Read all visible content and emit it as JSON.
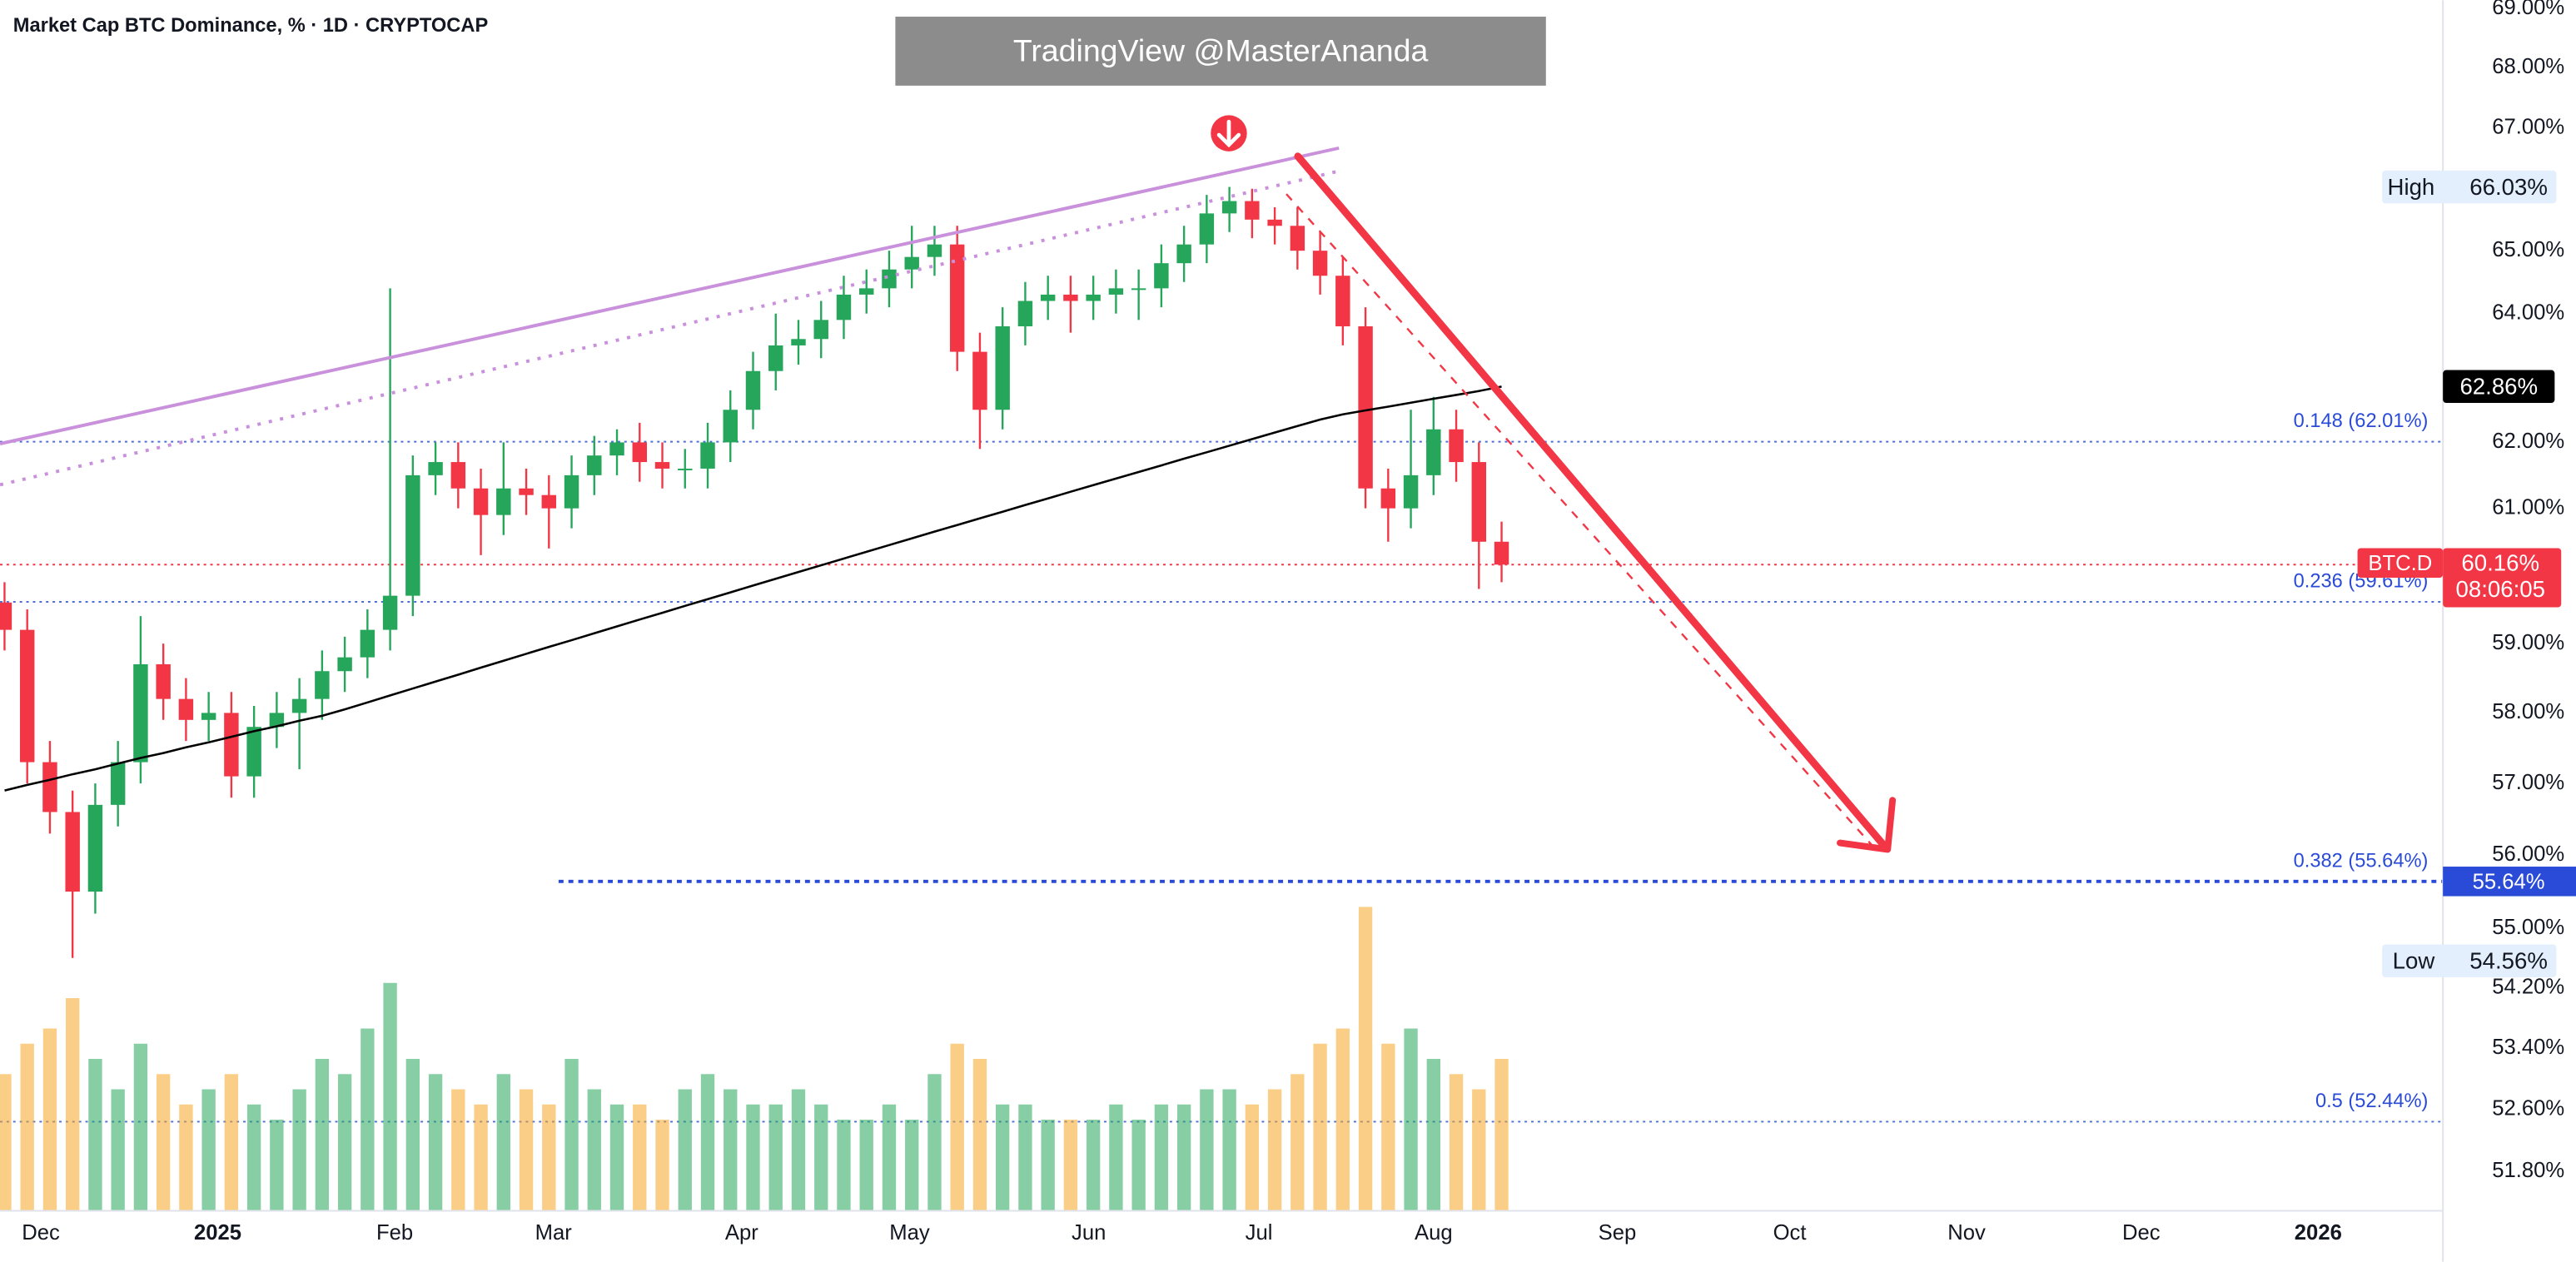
{
  "chart_data": {
    "type": "candlestick",
    "title": "Market Cap BTC Dominance, % · 1D · CRYPTOCAP",
    "watermark": "TradingView @MasterAnanda",
    "ylog": true,
    "grid": false,
    "ylim": [
      51.3,
      69.14
    ],
    "xlim": [
      -0.2,
      107.5
    ],
    "yticks": [
      {
        "value": 69,
        "label": "69.00%"
      },
      {
        "value": 68,
        "label": "68.00%"
      },
      {
        "value": 67,
        "label": "67.00%"
      },
      {
        "value": 65,
        "label": "65.00%"
      },
      {
        "value": 64,
        "label": "64.00%"
      },
      {
        "value": 62,
        "label": "62.00%"
      },
      {
        "value": 61,
        "label": "61.00%"
      },
      {
        "value": 59,
        "label": "59.00%"
      },
      {
        "value": 58,
        "label": "58.00%"
      },
      {
        "value": 57,
        "label": "57.00%"
      },
      {
        "value": 56,
        "label": "56.00%"
      },
      {
        "value": 55,
        "label": "55.00%"
      },
      {
        "value": 54.2,
        "label": "54.20%"
      },
      {
        "value": 53.4,
        "label": "53.40%"
      },
      {
        "value": 52.6,
        "label": "52.60%"
      },
      {
        "value": 51.8,
        "label": "51.80%"
      }
    ],
    "xticks": [
      {
        "value": 1.6,
        "label": "Dec"
      },
      {
        "value": 9.4,
        "label": "2025"
      },
      {
        "value": 17.2,
        "label": "Feb"
      },
      {
        "value": 24.2,
        "label": "Mar"
      },
      {
        "value": 32.5,
        "label": "Apr"
      },
      {
        "value": 39.9,
        "label": "May"
      },
      {
        "value": 47.8,
        "label": "Jun"
      },
      {
        "value": 55.3,
        "label": "Jul"
      },
      {
        "value": 63,
        "label": "Aug"
      },
      {
        "value": 71.1,
        "label": "Sep"
      },
      {
        "value": 78.7,
        "label": "Oct"
      },
      {
        "value": 86.5,
        "label": "Nov"
      },
      {
        "value": 94.2,
        "label": "Dec"
      },
      {
        "value": 102,
        "label": "2026"
      }
    ],
    "up_color": "#26a65b",
    "down_color": "#f23645",
    "open": [
      59.6,
      59.2,
      57.3,
      56.6,
      55.5,
      56.7,
      57.3,
      58.7,
      58.2,
      57.9,
      58.0,
      57.1,
      57.8,
      58.0,
      58.2,
      58.6,
      58.8,
      59.2,
      59.7,
      61.5,
      61.7,
      61.3,
      60.9,
      61.3,
      61.2,
      61.0,
      61.5,
      61.8,
      62.0,
      61.7,
      61.6,
      61.6,
      62.0,
      62.5,
      63.1,
      63.5,
      63.6,
      63.9,
      64.3,
      64.4,
      64.7,
      64.9,
      65.1,
      63.4,
      62.5,
      63.8,
      64.2,
      64.3,
      64.2,
      64.3,
      64.4,
      64.4,
      64.8,
      65.1,
      65.6,
      65.8,
      65.5,
      65.4,
      65.0,
      64.6,
      63.8,
      61.3,
      61.0,
      61.5,
      62.2,
      61.7,
      60.5
    ],
    "high": [
      59.9,
      59.5,
      57.6,
      56.9,
      57.0,
      57.6,
      59.4,
      59.0,
      58.5,
      58.3,
      58.3,
      58.1,
      58.3,
      58.5,
      58.9,
      59.1,
      59.5,
      64.4,
      61.8,
      62.0,
      62.0,
      61.6,
      62.0,
      61.6,
      61.5,
      61.8,
      62.1,
      62.2,
      62.3,
      62.0,
      61.9,
      62.3,
      62.8,
      63.4,
      64.0,
      63.9,
      64.2,
      64.6,
      64.7,
      65.0,
      65.4,
      65.4,
      65.4,
      63.7,
      64.1,
      64.5,
      64.6,
      64.6,
      64.6,
      64.7,
      64.7,
      65.1,
      65.4,
      65.9,
      66.03,
      66.0,
      65.7,
      65.7,
      65.3,
      64.9,
      64.1,
      61.6,
      62.5,
      62.7,
      62.5,
      62.0,
      60.8
    ],
    "low": [
      58.9,
      57.0,
      56.3,
      54.6,
      55.2,
      56.4,
      57.0,
      57.9,
      57.6,
      57.6,
      56.8,
      56.8,
      57.5,
      57.2,
      57.9,
      58.3,
      58.5,
      58.9,
      59.4,
      61.2,
      61.0,
      60.3,
      60.6,
      60.9,
      60.4,
      60.7,
      61.2,
      61.5,
      61.4,
      61.3,
      61.3,
      61.3,
      61.7,
      62.2,
      62.8,
      63.2,
      63.3,
      63.6,
      64.0,
      64.1,
      64.4,
      64.6,
      63.1,
      61.9,
      62.2,
      63.5,
      63.9,
      63.7,
      63.9,
      64.0,
      63.9,
      64.1,
      64.5,
      64.8,
      65.3,
      65.2,
      65.1,
      64.7,
      64.3,
      63.5,
      61.0,
      60.5,
      60.7,
      61.2,
      61.4,
      59.8,
      59.9
    ],
    "close": [
      59.2,
      57.3,
      56.6,
      55.5,
      56.7,
      57.3,
      58.7,
      58.2,
      57.9,
      58.0,
      57.1,
      57.8,
      58.0,
      58.2,
      58.6,
      58.8,
      59.2,
      59.7,
      61.5,
      61.7,
      61.3,
      60.9,
      61.3,
      61.2,
      61.0,
      61.5,
      61.8,
      62.0,
      61.7,
      61.6,
      61.6,
      62.0,
      62.5,
      63.1,
      63.5,
      63.6,
      63.9,
      64.3,
      64.4,
      64.7,
      64.9,
      65.1,
      63.4,
      62.5,
      63.8,
      64.2,
      64.3,
      64.2,
      64.3,
      64.4,
      64.4,
      64.8,
      65.1,
      65.6,
      65.8,
      65.5,
      65.4,
      65.0,
      64.6,
      63.8,
      61.3,
      61.0,
      61.5,
      62.2,
      61.7,
      60.5,
      60.16
    ],
    "volume": [
      45,
      55,
      60,
      70,
      50,
      40,
      55,
      45,
      35,
      40,
      45,
      35,
      30,
      40,
      50,
      45,
      60,
      75,
      50,
      45,
      40,
      35,
      45,
      40,
      35,
      50,
      40,
      35,
      35,
      30,
      40,
      45,
      40,
      35,
      35,
      40,
      35,
      30,
      30,
      35,
      30,
      45,
      55,
      50,
      35,
      35,
      30,
      30,
      30,
      35,
      30,
      35,
      35,
      40,
      40,
      35,
      40,
      45,
      55,
      60,
      100,
      55,
      60,
      50,
      45,
      40,
      50
    ],
    "ma": {
      "color": "#000000",
      "values": [
        56.9,
        56.98,
        57.05,
        57.13,
        57.2,
        57.28,
        57.36,
        57.43,
        57.51,
        57.58,
        57.66,
        57.74,
        57.81,
        57.89,
        57.96,
        58.05,
        58.15,
        58.25,
        58.35,
        58.45,
        58.55,
        58.65,
        58.75,
        58.85,
        58.95,
        59.05,
        59.15,
        59.25,
        59.35,
        59.45,
        59.55,
        59.65,
        59.75,
        59.85,
        59.95,
        60.05,
        60.15,
        60.25,
        60.35,
        60.45,
        60.55,
        60.65,
        60.75,
        60.85,
        60.95,
        61.05,
        61.15,
        61.25,
        61.35,
        61.45,
        61.55,
        61.65,
        61.75,
        61.85,
        61.95,
        62.05,
        62.15,
        62.25,
        62.35,
        62.43,
        62.49,
        62.55,
        62.61,
        62.67,
        62.73,
        62.79,
        62.86
      ],
      "last": {
        "value": 62.86,
        "value_label": "62.86%"
      }
    },
    "levels": [
      {
        "label": "0.148 (62.01%)",
        "value": 62.01
      },
      {
        "label": "0.236 (59.61%)",
        "value": 59.61
      },
      {
        "label": "0.382 (55.64%)",
        "value": 55.64,
        "value_label": "55.64%"
      },
      {
        "label": "0.5 (52.44%)",
        "value": 52.44
      }
    ],
    "high_marker": {
      "label": "High",
      "value": 66.03,
      "value_label": "66.03%"
    },
    "low_marker": {
      "label": "Low",
      "value": 54.56,
      "value_label": "54.56%"
    },
    "last_price": {
      "name": "BTC.D",
      "value": 60.16,
      "value_label": "60.16%",
      "countdown": "08:06:05"
    }
  }
}
